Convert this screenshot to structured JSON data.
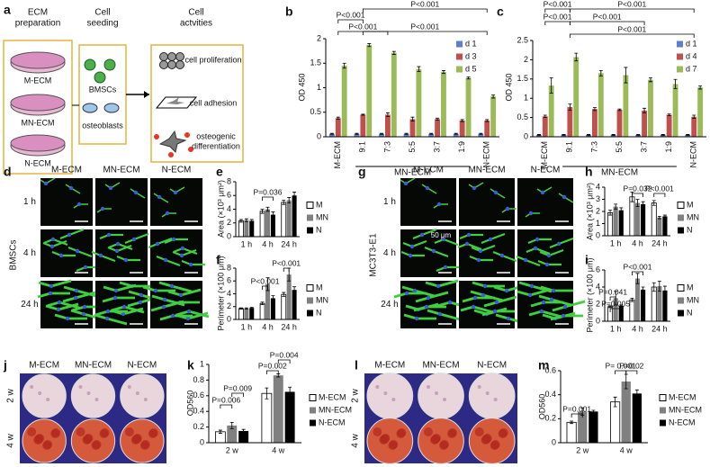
{
  "figure": {
    "a": {
      "panel": "a",
      "headers": [
        [
          "ECM",
          "preparation"
        ],
        [
          "Cell",
          "seeding"
        ],
        [
          "Cell",
          "actvities"
        ]
      ],
      "ecm": [
        "M-ECM",
        "MN-ECM",
        "N-ECM"
      ],
      "cells": [
        "BMSCs",
        "osteoblasts"
      ],
      "activities": [
        [
          "cell proliferation"
        ],
        [
          "cell adhesion"
        ],
        [
          "osteogenic",
          "differentiation"
        ]
      ]
    },
    "d": {
      "panel": "d",
      "columns": [
        "M-ECM",
        "MN-ECM",
        "N-ECM"
      ],
      "rows": [
        "1 h",
        "4 h",
        "24 h"
      ],
      "cell": "BMSCs"
    },
    "g": {
      "panel": "g",
      "columns": [
        "M-ECM",
        "MN-ECM",
        "N-ECM"
      ],
      "rows": [
        "1 h",
        "4 h",
        "24 h"
      ],
      "cell": "MC3T3-E1",
      "scale": "50 μm"
    },
    "j": {
      "panel": "j",
      "columns": [
        "M-ECM",
        "MN-ECM",
        "N-ECM"
      ],
      "rows": [
        "2 w",
        "4 w"
      ]
    },
    "l": {
      "panel": "l",
      "columns": [
        "M-ECM",
        "MN-ECM",
        "N-ECM"
      ],
      "rows": [
        "2 w",
        "4 w"
      ]
    }
  },
  "chart_data": [
    {
      "panel": "b",
      "type": "bar",
      "ylabel": "OD 450",
      "categories": [
        "M-ECM",
        "9:1",
        "7:3",
        "5:5",
        "3:7",
        "1:9",
        "N-ECM"
      ],
      "group_label": "MN-ECM",
      "series": [
        {
          "name": "d 1",
          "color": "#5b7fc8",
          "values": [
            0.06,
            0.06,
            0.06,
            0.06,
            0.06,
            0.06,
            0.06
          ],
          "errors": [
            0.01,
            0.01,
            0.01,
            0.01,
            0.01,
            0.01,
            0.01
          ]
        },
        {
          "name": "d 3",
          "color": "#c0504d",
          "values": [
            0.38,
            0.45,
            0.45,
            0.36,
            0.36,
            0.33,
            0.33
          ],
          "errors": [
            0.02,
            0.01,
            0.04,
            0.04,
            0.02,
            0.02,
            0.02
          ]
        },
        {
          "name": "d 5",
          "color": "#9bbb59",
          "values": [
            1.45,
            1.87,
            1.71,
            1.38,
            1.32,
            1.2,
            0.82
          ],
          "errors": [
            0.05,
            0.03,
            0.03,
            0.05,
            0.03,
            0.02,
            0.03
          ]
        }
      ],
      "ylim": [
        0,
        2
      ],
      "yticks": [
        0,
        0.5,
        1,
        1.5,
        2
      ],
      "annotations": [
        "P<0.001",
        "P<0.001",
        "P<0.001",
        "P<0.001"
      ]
    },
    {
      "panel": "c",
      "type": "bar",
      "ylabel": "OD 450",
      "categories": [
        "M-ECM",
        "9:1",
        "7:3",
        "5:5",
        "3:7",
        "1:9",
        "N-ECM"
      ],
      "group_label": "MN-ECM",
      "series": [
        {
          "name": "d 1",
          "color": "#5b7fc8",
          "values": [
            0.05,
            0.05,
            0.05,
            0.05,
            0.05,
            0.05,
            0.05
          ],
          "errors": [
            0.01,
            0.01,
            0.01,
            0.01,
            0.01,
            0.01,
            0.01
          ]
        },
        {
          "name": "d 4",
          "color": "#c0504d",
          "values": [
            0.53,
            0.77,
            0.72,
            0.7,
            0.68,
            0.57,
            0.52
          ],
          "errors": [
            0.03,
            0.08,
            0.04,
            0.02,
            0.06,
            0.02,
            0.04
          ]
        },
        {
          "name": "d 7",
          "color": "#9bbb59",
          "values": [
            1.33,
            2.07,
            1.65,
            1.6,
            1.48,
            1.37,
            1.28
          ],
          "errors": [
            0.2,
            0.1,
            0.07,
            0.2,
            0.05,
            0.12,
            0.04
          ]
        }
      ],
      "ylim": [
        0,
        2.5
      ],
      "yticks": [
        0,
        0.5,
        1,
        1.5,
        2,
        2.5
      ],
      "annotations": [
        "P<0.001",
        "P<0.001",
        "P<0.001",
        "P<0.001",
        "P<0.001"
      ]
    },
    {
      "panel": "e",
      "type": "bar",
      "ylabel": "Area (×10³ μm²)",
      "categories": [
        "1 h",
        "4 h",
        "24 h"
      ],
      "series": [
        {
          "name": "M",
          "color": "#ffffff",
          "values": [
            2.3,
            3.7,
            5.0
          ],
          "errors": [
            0.2,
            0.3,
            0.3
          ]
        },
        {
          "name": "MN",
          "color": "#808080",
          "values": [
            2.4,
            4.0,
            5.3
          ],
          "errors": [
            0.2,
            0.3,
            0.4
          ]
        },
        {
          "name": "N",
          "color": "#000000",
          "values": [
            2.3,
            3.2,
            6.0
          ],
          "errors": [
            0.2,
            0.4,
            0.5
          ]
        }
      ],
      "ylim": [
        0,
        8
      ],
      "yticks": [
        0,
        2,
        4,
        6,
        8
      ],
      "annotations": [
        "P=0.036"
      ]
    },
    {
      "panel": "f",
      "type": "bar",
      "ylabel": "Perimeter (×100 μm)",
      "categories": [
        "1 h",
        "4 h",
        "24 h"
      ],
      "series": [
        {
          "name": "M",
          "color": "#ffffff",
          "values": [
            1.7,
            2.5,
            3.9
          ],
          "errors": [
            0.1,
            0.2,
            0.3
          ]
        },
        {
          "name": "MN",
          "color": "#808080",
          "values": [
            1.7,
            5.5,
            7.0
          ],
          "errors": [
            0.1,
            1.0,
            1.0
          ]
        },
        {
          "name": "N",
          "color": "#000000",
          "values": [
            1.8,
            3.3,
            4.6
          ],
          "errors": [
            0.1,
            0.4,
            0.5
          ]
        }
      ],
      "ylim": [
        0,
        8
      ],
      "yticks": [
        0,
        2,
        4,
        6,
        8
      ],
      "annotations": [
        "P<0.001",
        "P<0.001"
      ]
    },
    {
      "panel": "h",
      "type": "bar",
      "ylabel": "Area (×10³ μm²)",
      "categories": [
        "1 h",
        "4 h",
        "24 h"
      ],
      "series": [
        {
          "name": "M",
          "color": "#ffffff",
          "values": [
            1.9,
            3.2,
            2.7
          ],
          "errors": [
            0.2,
            0.4,
            0.2
          ]
        },
        {
          "name": "MN",
          "color": "#808080",
          "values": [
            2.4,
            2.7,
            1.5
          ],
          "errors": [
            0.2,
            0.3,
            0.1
          ]
        },
        {
          "name": "N",
          "color": "#000000",
          "values": [
            2.1,
            2.6,
            1.6
          ],
          "errors": [
            0.2,
            0.2,
            0.1
          ]
        }
      ],
      "ylim": [
        0,
        4
      ],
      "yticks": [
        0,
        1,
        2,
        3,
        4
      ],
      "annotations": [
        "P=0.032",
        "P<0.001"
      ]
    },
    {
      "panel": "i",
      "type": "bar",
      "ylabel": "Perimeter (×100 μm)",
      "categories": [
        "1 h",
        "4 h",
        "24 h"
      ],
      "series": [
        {
          "name": "M",
          "color": "#ffffff",
          "values": [
            1.7,
            2.5,
            4.0
          ],
          "errors": [
            0.1,
            0.2,
            0.5
          ]
        },
        {
          "name": "MN",
          "color": "#808080",
          "values": [
            2.7,
            5.0,
            4.1
          ],
          "errors": [
            0.8,
            0.6,
            0.6
          ]
        },
        {
          "name": "N",
          "color": "#000000",
          "values": [
            1.8,
            3.7,
            3.6
          ],
          "errors": [
            0.1,
            0.3,
            0.5
          ]
        }
      ],
      "ylim": [
        0,
        6
      ],
      "yticks": [
        0,
        2,
        4,
        6
      ],
      "annotations": [
        "P=0.041",
        "P=0.005",
        "P<0.001"
      ]
    },
    {
      "panel": "k",
      "type": "bar",
      "ylabel": "OD560",
      "categories": [
        "2 w",
        "4 w"
      ],
      "series": [
        {
          "name": "M-ECM",
          "color": "#ffffff",
          "values": [
            0.14,
            0.63
          ],
          "errors": [
            0.02,
            0.07
          ]
        },
        {
          "name": "MN-ECM",
          "color": "#808080",
          "values": [
            0.22,
            0.86
          ],
          "errors": [
            0.04,
            0.02
          ]
        },
        {
          "name": "N-ECM",
          "color": "#000000",
          "values": [
            0.15,
            0.65
          ],
          "errors": [
            0.02,
            0.06
          ]
        }
      ],
      "ylim": [
        0,
        1
      ],
      "yticks": [
        0,
        0.2,
        0.4,
        0.6,
        0.8,
        1
      ],
      "annotations": [
        "P=0.006",
        "P=0.009",
        "P=0.002",
        "P=0.004"
      ]
    },
    {
      "panel": "m",
      "type": "bar",
      "ylabel": "OD560",
      "categories": [
        "2 w",
        "4 w"
      ],
      "series": [
        {
          "name": "M-ECM",
          "color": "#ffffff",
          "values": [
            0.17,
            0.34
          ],
          "errors": [
            0.01,
            0.04
          ]
        },
        {
          "name": "MN-ECM",
          "color": "#808080",
          "values": [
            0.26,
            0.51
          ],
          "errors": [
            0.03,
            0.06
          ]
        },
        {
          "name": "N-ECM",
          "color": "#000000",
          "values": [
            0.26,
            0.41
          ],
          "errors": [
            0.01,
            0.03
          ]
        }
      ],
      "ylim": [
        0,
        0.6
      ],
      "yticks": [
        0,
        0.2,
        0.4,
        0.6
      ],
      "annotations": [
        "P=0.001",
        "P= 0.001",
        "P=0.02"
      ]
    }
  ]
}
